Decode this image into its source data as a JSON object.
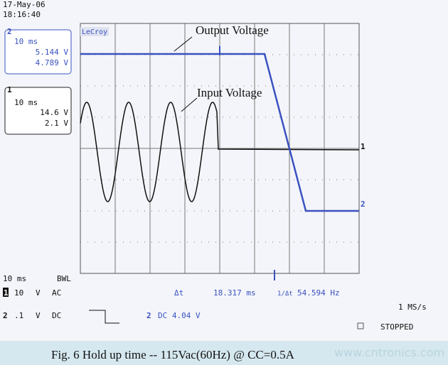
{
  "header": {
    "date": "17-May-06",
    "time": "18:16:40"
  },
  "channel2_box": {
    "channel": "2",
    "timebase": "10 ms",
    "top": "5.144 V",
    "bottom": "4.789 V"
  },
  "channel1_box": {
    "channel": "1",
    "timebase": "10 ms",
    "top": "14.6 V",
    "bottom": "2.1 V"
  },
  "brand": "LeCroy",
  "annotations": {
    "output": "Output Voltage",
    "input": "Input Voltage"
  },
  "trace_labels": {
    "ch1": "1",
    "ch2": "2"
  },
  "status": {
    "timebase": "10 ms",
    "bwl": "BWL",
    "ch1_row": {
      "channel": "1",
      "scale": "10",
      "unit": "V",
      "coupling": "AC"
    },
    "ch2_row": {
      "channel": "2",
      "scale": ".1",
      "unit": "V",
      "coupling": "DC"
    },
    "delta_t_label": "Δt",
    "delta_t": "18.317 ms",
    "inv_label": "1/Δt",
    "inv_value": "54.594 Hz",
    "trigger_channel": "2",
    "trigger": "DC 4.04 V",
    "rate": "1 MS/s",
    "state": "STOPPED"
  },
  "caption": "Fig. 6  Hold up time  -- 115Vac(60Hz) @ CC=0.5A",
  "watermark": "www.cntronics.com"
}
